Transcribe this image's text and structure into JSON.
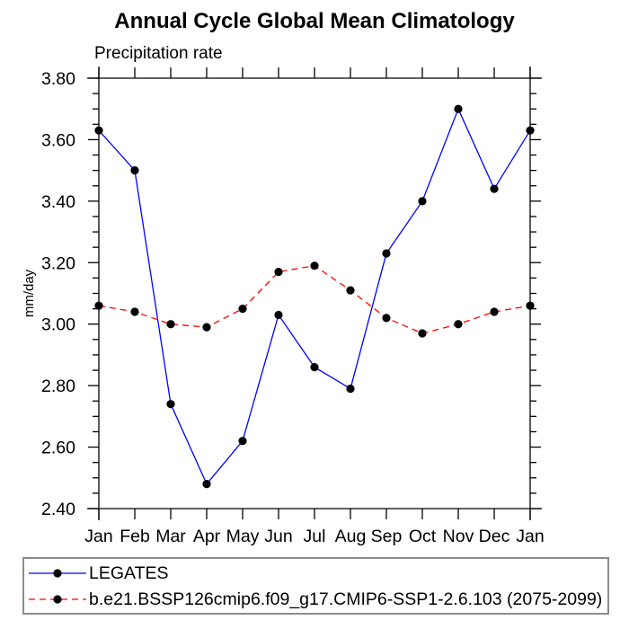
{
  "chart_data": {
    "type": "line",
    "title": "Annual Cycle Global Mean Climatology",
    "subtitle": "Precipitation rate",
    "ylabel": "mm/day",
    "categories": [
      "Jan",
      "Feb",
      "Mar",
      "Apr",
      "May",
      "Jun",
      "Jul",
      "Aug",
      "Sep",
      "Oct",
      "Nov",
      "Dec",
      "Jan"
    ],
    "ylim": [
      2.4,
      3.8
    ],
    "ytick_step": 0.2,
    "yminor_step": 0.05,
    "ytick_labels": [
      "2.40",
      "2.60",
      "2.80",
      "3.00",
      "3.20",
      "3.40",
      "3.60",
      "3.80"
    ],
    "grid": false,
    "legend_position": "bottom-left-box",
    "axis_color": "#000000",
    "marker_color": "#000000",
    "series": [
      {
        "name": "LEGATES",
        "color": "#0000ff",
        "style": "solid",
        "marker": "filled-circle",
        "values": [
          3.63,
          3.5,
          2.74,
          2.48,
          2.62,
          3.03,
          2.86,
          2.79,
          3.23,
          3.4,
          3.7,
          3.44,
          3.63
        ]
      },
      {
        "name": "b.e21.BSSP126cmip6.f09_g17.CMIP6-SSP1-2.6.103 (2075-2099)",
        "color": "#ff0000",
        "style": "dashed",
        "marker": "filled-circle",
        "values": [
          3.06,
          3.04,
          3.0,
          2.99,
          3.05,
          3.17,
          3.19,
          3.11,
          3.02,
          2.97,
          3.0,
          3.04,
          3.06
        ]
      }
    ]
  }
}
